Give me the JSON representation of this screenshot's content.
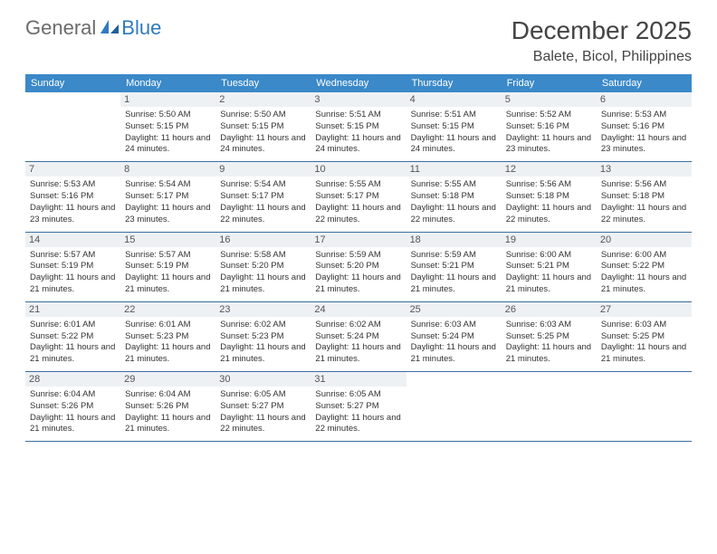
{
  "logo": {
    "part1": "General",
    "part2": "Blue"
  },
  "title": "December 2025",
  "location": "Balete, Bicol, Philippines",
  "colors": {
    "header_bg": "#3b89c9",
    "header_text": "#ffffff",
    "row_border": "#3b6fa0",
    "daynum_bg": "#eef1f3",
    "text": "#333333",
    "logo_gray": "#6b6b6b",
    "logo_blue": "#2f7bbf"
  },
  "weekdays": [
    "Sunday",
    "Monday",
    "Tuesday",
    "Wednesday",
    "Thursday",
    "Friday",
    "Saturday"
  ],
  "weeks": [
    [
      null,
      {
        "n": "1",
        "sr": "5:50 AM",
        "ss": "5:15 PM",
        "dl": "11 hours and 24 minutes."
      },
      {
        "n": "2",
        "sr": "5:50 AM",
        "ss": "5:15 PM",
        "dl": "11 hours and 24 minutes."
      },
      {
        "n": "3",
        "sr": "5:51 AM",
        "ss": "5:15 PM",
        "dl": "11 hours and 24 minutes."
      },
      {
        "n": "4",
        "sr": "5:51 AM",
        "ss": "5:15 PM",
        "dl": "11 hours and 24 minutes."
      },
      {
        "n": "5",
        "sr": "5:52 AM",
        "ss": "5:16 PM",
        "dl": "11 hours and 23 minutes."
      },
      {
        "n": "6",
        "sr": "5:53 AM",
        "ss": "5:16 PM",
        "dl": "11 hours and 23 minutes."
      }
    ],
    [
      {
        "n": "7",
        "sr": "5:53 AM",
        "ss": "5:16 PM",
        "dl": "11 hours and 23 minutes."
      },
      {
        "n": "8",
        "sr": "5:54 AM",
        "ss": "5:17 PM",
        "dl": "11 hours and 23 minutes."
      },
      {
        "n": "9",
        "sr": "5:54 AM",
        "ss": "5:17 PM",
        "dl": "11 hours and 22 minutes."
      },
      {
        "n": "10",
        "sr": "5:55 AM",
        "ss": "5:17 PM",
        "dl": "11 hours and 22 minutes."
      },
      {
        "n": "11",
        "sr": "5:55 AM",
        "ss": "5:18 PM",
        "dl": "11 hours and 22 minutes."
      },
      {
        "n": "12",
        "sr": "5:56 AM",
        "ss": "5:18 PM",
        "dl": "11 hours and 22 minutes."
      },
      {
        "n": "13",
        "sr": "5:56 AM",
        "ss": "5:18 PM",
        "dl": "11 hours and 22 minutes."
      }
    ],
    [
      {
        "n": "14",
        "sr": "5:57 AM",
        "ss": "5:19 PM",
        "dl": "11 hours and 21 minutes."
      },
      {
        "n": "15",
        "sr": "5:57 AM",
        "ss": "5:19 PM",
        "dl": "11 hours and 21 minutes."
      },
      {
        "n": "16",
        "sr": "5:58 AM",
        "ss": "5:20 PM",
        "dl": "11 hours and 21 minutes."
      },
      {
        "n": "17",
        "sr": "5:59 AM",
        "ss": "5:20 PM",
        "dl": "11 hours and 21 minutes."
      },
      {
        "n": "18",
        "sr": "5:59 AM",
        "ss": "5:21 PM",
        "dl": "11 hours and 21 minutes."
      },
      {
        "n": "19",
        "sr": "6:00 AM",
        "ss": "5:21 PM",
        "dl": "11 hours and 21 minutes."
      },
      {
        "n": "20",
        "sr": "6:00 AM",
        "ss": "5:22 PM",
        "dl": "11 hours and 21 minutes."
      }
    ],
    [
      {
        "n": "21",
        "sr": "6:01 AM",
        "ss": "5:22 PM",
        "dl": "11 hours and 21 minutes."
      },
      {
        "n": "22",
        "sr": "6:01 AM",
        "ss": "5:23 PM",
        "dl": "11 hours and 21 minutes."
      },
      {
        "n": "23",
        "sr": "6:02 AM",
        "ss": "5:23 PM",
        "dl": "11 hours and 21 minutes."
      },
      {
        "n": "24",
        "sr": "6:02 AM",
        "ss": "5:24 PM",
        "dl": "11 hours and 21 minutes."
      },
      {
        "n": "25",
        "sr": "6:03 AM",
        "ss": "5:24 PM",
        "dl": "11 hours and 21 minutes."
      },
      {
        "n": "26",
        "sr": "6:03 AM",
        "ss": "5:25 PM",
        "dl": "11 hours and 21 minutes."
      },
      {
        "n": "27",
        "sr": "6:03 AM",
        "ss": "5:25 PM",
        "dl": "11 hours and 21 minutes."
      }
    ],
    [
      {
        "n": "28",
        "sr": "6:04 AM",
        "ss": "5:26 PM",
        "dl": "11 hours and 21 minutes."
      },
      {
        "n": "29",
        "sr": "6:04 AM",
        "ss": "5:26 PM",
        "dl": "11 hours and 21 minutes."
      },
      {
        "n": "30",
        "sr": "6:05 AM",
        "ss": "5:27 PM",
        "dl": "11 hours and 22 minutes."
      },
      {
        "n": "31",
        "sr": "6:05 AM",
        "ss": "5:27 PM",
        "dl": "11 hours and 22 minutes."
      },
      null,
      null,
      null
    ]
  ],
  "labels": {
    "sunrise": "Sunrise:",
    "sunset": "Sunset:",
    "daylight": "Daylight:"
  }
}
